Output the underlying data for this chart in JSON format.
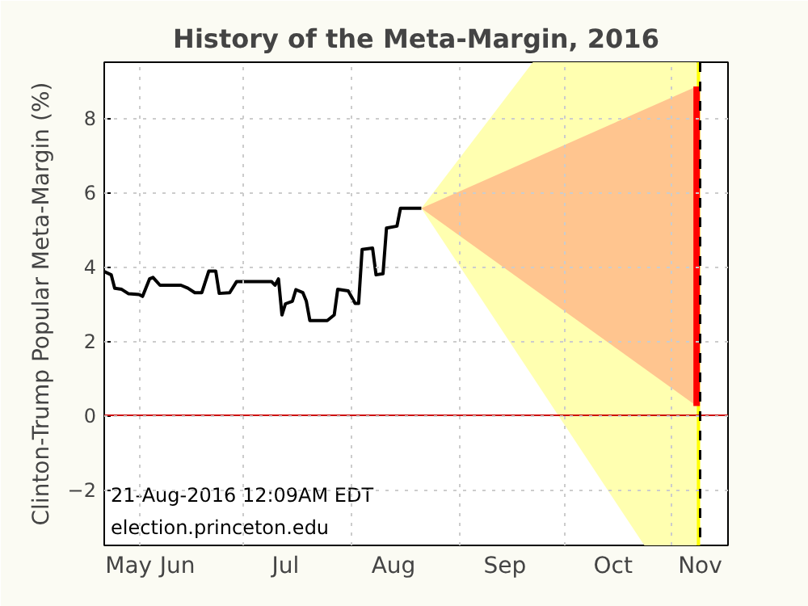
{
  "chart_data": {
    "type": "line",
    "title": "History of the Meta-Margin, 2016",
    "ylabel": "Clinton-Trump Popular Meta-Margin (%)",
    "annotations": [
      "21-Aug-2016 12:09AM EDT",
      "election.princeton.edu"
    ],
    "series": [
      {
        "type": "line",
        "color": "#ffffb0",
        "x": [
          "2016-08-21",
          "2016-09-22",
          "2016-10-24",
          "2016-11-08"
        ],
        "values": [
          null,
          null,
          null,
          null
        ],
        "upper": [
          5.57,
          9.5,
          9.5,
          9.5
        ],
        "lower": [
          5.57,
          1.03,
          -3.5,
          -3.5
        ]
      },
      {
        "type": "line",
        "color": "#ffc58f",
        "x": [
          "2016-08-21",
          "2016-11-08"
        ],
        "values": [
          null,
          null
        ],
        "upper": [
          5.57,
          8.85
        ],
        "lower": [
          5.57,
          0.25
        ]
      },
      {
        "type": "line",
        "color": "#ff0000",
        "x": [
          "2016-11-08",
          "2016-11-08"
        ],
        "values": [
          0.25,
          8.85
        ]
      },
      {
        "color": "#000000",
        "x": [
          "2016-05-22",
          "2016-05-24",
          "2016-05-25",
          "2016-05-27",
          "2016-05-29",
          "2016-06-01",
          "2016-06-02",
          "2016-06-04",
          "2016-06-05",
          "2016-06-07",
          "2016-06-13",
          "2016-06-15",
          "2016-06-17",
          "2016-06-19",
          "2016-06-21",
          "2016-06-23",
          "2016-06-24",
          "2016-06-27",
          "2016-06-29",
          "2016-07-09",
          "2016-07-10",
          "2016-07-11",
          "2016-07-12",
          "2016-07-13",
          "2016-07-15",
          "2016-07-16",
          "2016-07-18",
          "2016-07-19",
          "2016-07-20",
          "2016-07-25",
          "2016-07-27",
          "2016-07-28",
          "2016-07-31",
          "2016-08-02",
          "2016-08-03",
          "2016-08-04",
          "2016-08-07",
          "2016-08-08",
          "2016-08-10",
          "2016-08-11",
          "2016-08-14",
          "2016-08-15",
          "2016-08-21"
        ],
        "values": [
          3.87,
          3.78,
          3.42,
          3.39,
          3.27,
          3.25,
          3.2,
          3.67,
          3.71,
          3.5,
          3.5,
          3.42,
          3.3,
          3.3,
          3.88,
          3.88,
          3.28,
          3.3,
          3.6,
          3.6,
          3.5,
          3.67,
          2.7,
          3.0,
          3.07,
          3.38,
          3.3,
          3.07,
          2.55,
          2.55,
          2.7,
          3.39,
          3.35,
          3.01,
          3.01,
          4.46,
          4.5,
          3.78,
          3.81,
          5.04,
          5.09,
          5.57,
          5.57
        ]
      }
    ],
    "bands": [
      {
        "axis": "x",
        "from": "2016-11-08",
        "to": "2016-11-09",
        "color": "#ffff00"
      }
    ],
    "ref_lines": [
      {
        "axis": "y",
        "value": 0,
        "color": "#cc0000",
        "line_style": "solid"
      },
      {
        "axis": "x",
        "value": "2016-11-09",
        "color": "#000000",
        "line_style": "dashed"
      }
    ],
    "xlim": [
      "2016-05-22",
      "2016-11-17"
    ],
    "xticks": [
      {
        "value": "2016-05-29",
        "label": "May"
      },
      {
        "value": "2016-06-01",
        "label": null
      },
      {
        "value": "2016-06-12",
        "label": "Jun"
      },
      {
        "value": "2016-07-01",
        "label": null
      },
      {
        "value": "2016-07-13",
        "label": "Jul"
      },
      {
        "value": "2016-08-01",
        "label": null
      },
      {
        "value": "2016-08-13",
        "label": "Aug"
      },
      {
        "value": "2016-09-01",
        "label": null
      },
      {
        "value": "2016-09-14",
        "label": "Sep"
      },
      {
        "value": "2016-10-01",
        "label": null
      },
      {
        "value": "2016-10-15",
        "label": "Oct"
      },
      {
        "value": "2016-11-01",
        "label": null
      },
      {
        "value": "2016-11-09",
        "label": "Nov"
      }
    ],
    "ylim": [
      -3.5,
      9.5
    ],
    "yticks": [
      -2,
      0,
      2,
      4,
      6,
      8
    ],
    "grid": true
  }
}
